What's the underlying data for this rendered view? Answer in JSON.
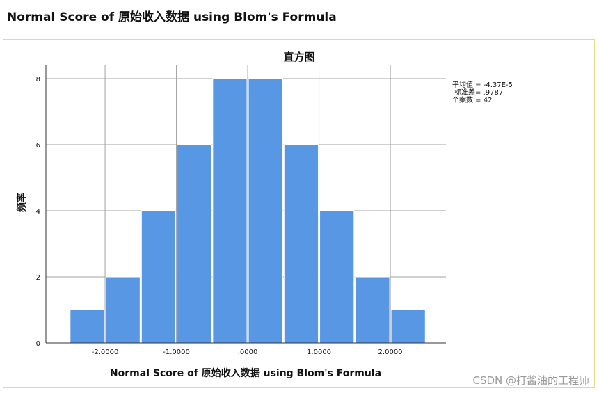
{
  "page": {
    "heading": "Normal Score of 原始收入数据 using Blom's Formula",
    "watermark": "CSDN @打酱油的工程师"
  },
  "chart_data": {
    "type": "bar",
    "title": "直方图",
    "xlabel": "Normal Score of 原始收入数据 using Blom's Formula",
    "ylabel": "频率",
    "bin_width": 0.5,
    "bins": [
      {
        "from": -2.5,
        "to": -2.0,
        "count": 1
      },
      {
        "from": -2.0,
        "to": -1.5,
        "count": 2
      },
      {
        "from": -1.5,
        "to": -1.0,
        "count": 4
      },
      {
        "from": -1.0,
        "to": -0.5,
        "count": 6
      },
      {
        "from": -0.5,
        "to": 0.0,
        "count": 8
      },
      {
        "from": 0.0,
        "to": 0.5,
        "count": 8
      },
      {
        "from": 0.5,
        "to": 1.0,
        "count": 6
      },
      {
        "from": 1.0,
        "to": 1.5,
        "count": 4
      },
      {
        "from": 1.5,
        "to": 2.0,
        "count": 2
      },
      {
        "from": 2.0,
        "to": 2.5,
        "count": 1
      }
    ],
    "xlim": [
      -2.83,
      2.78
    ],
    "ylim": [
      0,
      8.4
    ],
    "x_ticks": [
      {
        "value": -2.0,
        "label": "-2.0000"
      },
      {
        "value": -1.0,
        "label": "-1.0000"
      },
      {
        "value": 0.0,
        "label": ".0000"
      },
      {
        "value": 1.0,
        "label": "1.0000"
      },
      {
        "value": 2.0,
        "label": "2.0000"
      }
    ],
    "y_ticks": [
      {
        "value": 0,
        "label": "0"
      },
      {
        "value": 2,
        "label": "2"
      },
      {
        "value": 4,
        "label": "4"
      },
      {
        "value": 6,
        "label": "6"
      },
      {
        "value": 8,
        "label": "8"
      }
    ],
    "grid": true,
    "bar_color": "#5797e4",
    "bar_edge_color": "#ffffff",
    "grid_color": "#a0a0a0",
    "stats": {
      "mean": "平均值 = -4.37E-5",
      "std": "标准差= .9787",
      "n": "个案数 = 42"
    },
    "stats_placement": "right"
  }
}
